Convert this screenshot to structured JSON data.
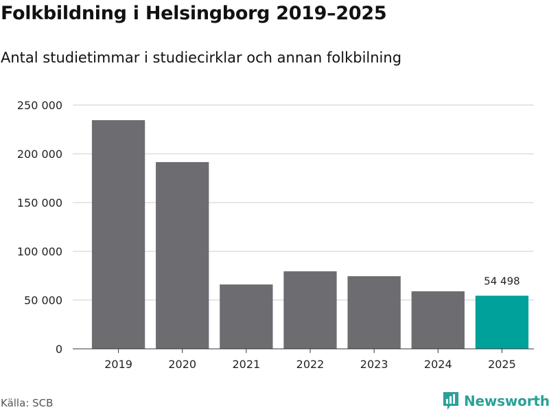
{
  "header": {
    "title": "Folkbildning i Helsingborg 2019–2025",
    "subtitle": "Antal studietimmar i studiecirklar och annan folkbilning"
  },
  "footer": {
    "source": "Källa: SCB",
    "brand": "Newsworthy",
    "brand_icon": "bar-chart-speech-bubble-icon"
  },
  "colors": {
    "bar": "#6d6c71",
    "highlight": "#00a19a",
    "grid": "#dddddd",
    "axis": "#333333",
    "brand": "#2aa198"
  },
  "chart_data": {
    "type": "bar",
    "categories": [
      "2019",
      "2020",
      "2021",
      "2022",
      "2023",
      "2024",
      "2025"
    ],
    "values": [
      234500,
      191500,
      66000,
      79500,
      74500,
      59000,
      54498
    ],
    "ylim": [
      0,
      250000
    ],
    "yticks": [
      0,
      50000,
      100000,
      150000,
      200000,
      250000
    ],
    "ytick_labels": [
      "0",
      "50 000",
      "100 000",
      "150 000",
      "200 000",
      "250 000"
    ],
    "highlight_index": 6,
    "data_labels": [
      {
        "index": 6,
        "text": "54 498"
      }
    ],
    "grid": true,
    "legend": "none"
  }
}
